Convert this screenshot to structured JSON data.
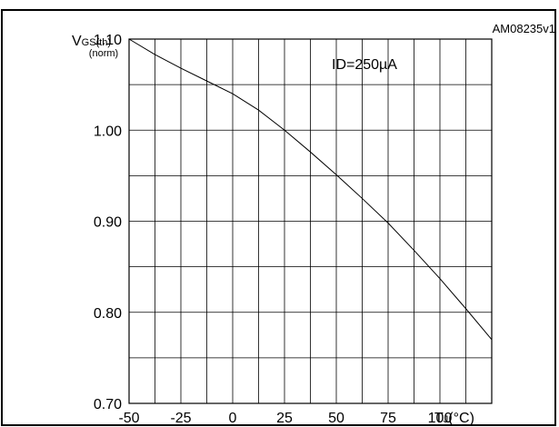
{
  "chart_data": {
    "type": "line",
    "title": "",
    "figure_id": "AM08235v1",
    "annotation": "ID=250µA",
    "ylabel_main": "V",
    "ylabel_sub": "GS(th)",
    "ylabel_norm": "(norm)",
    "xlabel_main": "T",
    "xlabel_sub": "J",
    "xlabel_unit": "(°C)",
    "xlim": [
      -50,
      125
    ],
    "ylim": [
      0.7,
      1.1
    ],
    "xticks": [
      "-50",
      "-25",
      "0",
      "25",
      "50",
      "75",
      "100"
    ],
    "yticks": [
      "0.70",
      "0.80",
      "0.90",
      "1.00",
      "1.10"
    ],
    "grid": true,
    "series": [
      {
        "x": [
          -50,
          -37.5,
          -25,
          -12.5,
          0,
          12.5,
          25,
          37.5,
          50,
          62.5,
          75,
          87.5,
          100,
          112.5,
          125
        ],
        "y": [
          1.1,
          1.083,
          1.068,
          1.054,
          1.04,
          1.022,
          1.0,
          0.976,
          0.951,
          0.925,
          0.898,
          0.868,
          0.837,
          0.804,
          0.77
        ]
      }
    ]
  }
}
